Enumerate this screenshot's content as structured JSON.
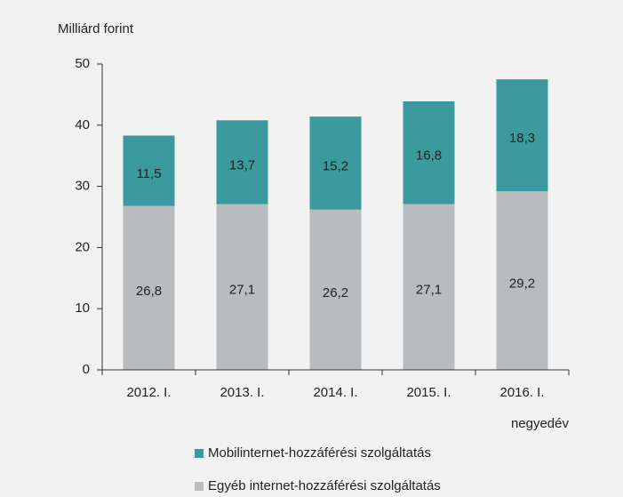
{
  "chart_data": {
    "type": "stacked_bar",
    "y_label": "Milliárd forint",
    "x_label": "negyedév",
    "categories": [
      "2012. I.",
      "2013. I.",
      "2014. I.",
      "2015. I.",
      "2016. I."
    ],
    "series": [
      {
        "name": "Mobilinternet-hozzáférési szolgáltatás",
        "color": "#3a9a9d",
        "values": [
          11.5,
          13.7,
          15.2,
          16.8,
          18.3
        ],
        "value_labels": [
          "11,5",
          "13,7",
          "15,2",
          "16,8",
          "18,3"
        ]
      },
      {
        "name": "Egyéb internet-hozzáférési szolgáltatás",
        "color": "#b9bcbf",
        "values": [
          26.8,
          27.1,
          26.2,
          27.1,
          29.2
        ],
        "value_labels": [
          "26,8",
          "27,1",
          "26,2",
          "27,1",
          "29,2"
        ]
      }
    ],
    "ylim": [
      0,
      50
    ],
    "yticks": [
      0,
      10,
      20,
      30,
      40,
      50
    ]
  }
}
